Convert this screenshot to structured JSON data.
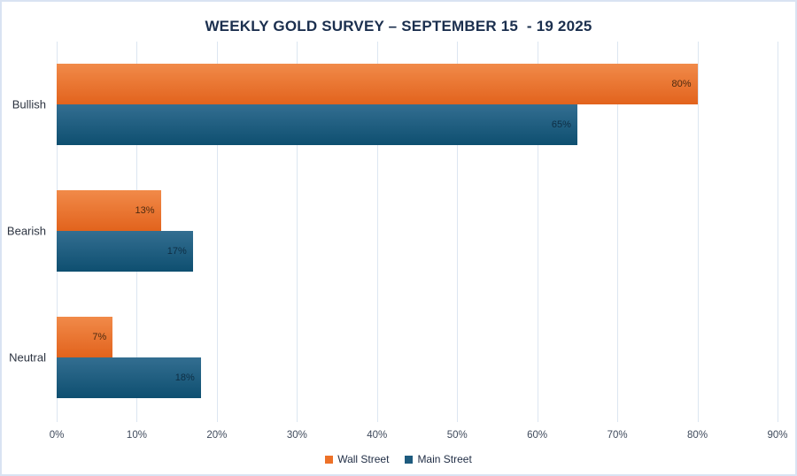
{
  "title": "WEEKLY GOLD SURVEY – SEPTEMBER 15  - 19 2025",
  "chart_data": {
    "type": "bar",
    "orientation": "horizontal",
    "title": "WEEKLY GOLD SURVEY – SEPTEMBER 15  - 19 2025",
    "categories": [
      "Bullish",
      "Bearish",
      "Neutral"
    ],
    "series": [
      {
        "name": "Wall Street",
        "values": [
          80,
          13,
          7
        ],
        "labels": [
          "80%",
          "13%",
          "7%"
        ],
        "color": "#ED7128",
        "gradient_top": "#f18a49",
        "gradient_bottom": "#e2631d",
        "label_color": "#4c2a10"
      },
      {
        "name": "Main Street",
        "values": [
          65,
          17,
          18
        ],
        "labels": [
          "65%",
          "17%",
          "18%"
        ],
        "color": "#1E5B7E",
        "gradient_top": "#336e91",
        "gradient_bottom": "#0e4f70",
        "label_color": "#0e2e44"
      }
    ],
    "xlim": [
      0,
      90
    ],
    "x_ticks": [
      "0%",
      "10%",
      "20%",
      "30%",
      "40%",
      "50%",
      "60%",
      "70%",
      "80%",
      "90%"
    ],
    "grid": true,
    "legend_position": "bottom",
    "colors": {
      "gridline": "#dce6f1",
      "frame_border": "#d9e3f2",
      "title_text": "#1b2f4e",
      "tick_text": "#3f4a5c",
      "category_text": "#2c3340",
      "legend_text": "#1f2c44"
    }
  }
}
